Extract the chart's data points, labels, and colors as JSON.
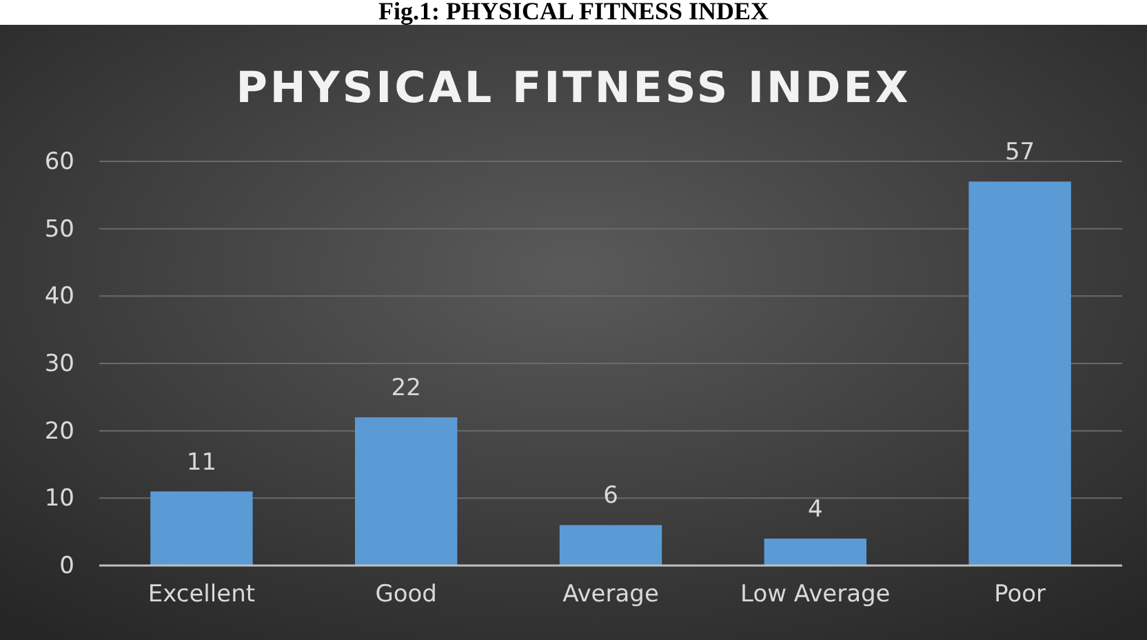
{
  "chart_data": {
    "type": "bar",
    "title": "PHYSICAL FITNESS INDEX",
    "annotations": [
      "Fig.1: PHYSICAL FITNESS INDEX"
    ],
    "categories": [
      "Excellent",
      "Good",
      "Average",
      "Low Average",
      "Poor"
    ],
    "values": [
      11,
      22,
      6,
      4,
      57
    ],
    "color": "#5b9bd5",
    "ylim": [
      0,
      60
    ],
    "yticks": [
      0,
      10,
      20,
      30,
      40,
      50,
      60
    ],
    "grid": "y",
    "data_labels": true
  }
}
